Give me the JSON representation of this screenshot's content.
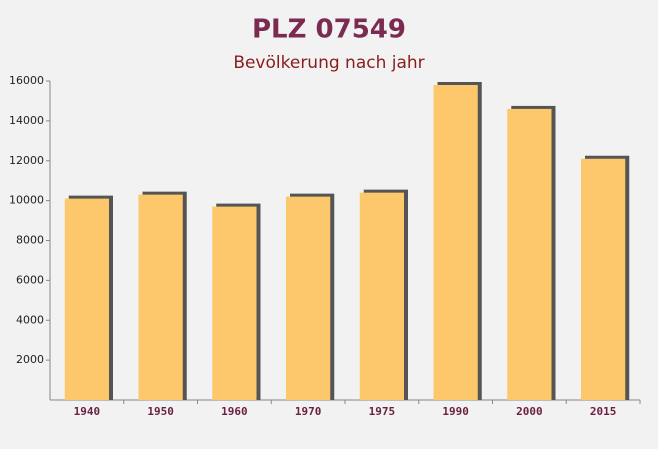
{
  "chart_data": {
    "type": "bar",
    "title": "PLZ 07549",
    "subtitle": "Bevölkerung nach jahr",
    "categories": [
      "1940",
      "1950",
      "1960",
      "1970",
      "1975",
      "1990",
      "2000",
      "2015"
    ],
    "values": [
      10100,
      10300,
      9700,
      10200,
      10400,
      15800,
      14600,
      12100
    ],
    "color": "#fcc86b",
    "ylim": [
      0,
      16000
    ],
    "yticks": [
      2000,
      4000,
      6000,
      8000,
      10000,
      12000,
      14000,
      16000
    ]
  }
}
